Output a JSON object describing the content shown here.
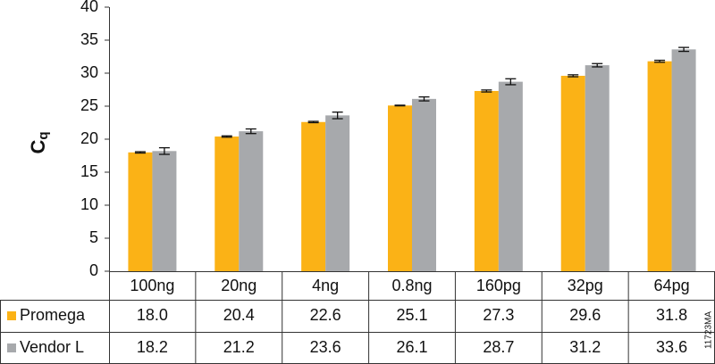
{
  "chart_data": {
    "type": "bar",
    "ylabel": "C",
    "ylabel_subscript": "q",
    "figure_id": "11723MA",
    "categories": [
      "100ng",
      "20ng",
      "4ng",
      "0.8ng",
      "160pg",
      "32pg",
      "64pg"
    ],
    "series": [
      {
        "name": "Promega",
        "color": "#fbb216",
        "values": [
          18.0,
          20.4,
          22.6,
          25.1,
          27.3,
          29.6,
          31.8
        ],
        "value_labels": [
          "18.0",
          "20.4",
          "22.6",
          "25.1",
          "27.3",
          "29.6",
          "31.8"
        ],
        "errors": [
          0.1,
          0.1,
          0.1,
          0.05,
          0.15,
          0.15,
          0.15
        ]
      },
      {
        "name": "Vendor L",
        "color": "#a7a9ac",
        "values": [
          18.2,
          21.2,
          23.6,
          26.1,
          28.7,
          31.2,
          33.6
        ],
        "value_labels": [
          "18.2",
          "21.2",
          "23.6",
          "26.1",
          "28.7",
          "31.2",
          "33.6"
        ],
        "errors": [
          0.5,
          0.35,
          0.5,
          0.3,
          0.45,
          0.25,
          0.3
        ]
      }
    ],
    "ylim": [
      0,
      40
    ],
    "yticks": [
      0,
      5,
      10,
      15,
      20,
      25,
      30,
      35,
      40
    ],
    "grid": false
  }
}
